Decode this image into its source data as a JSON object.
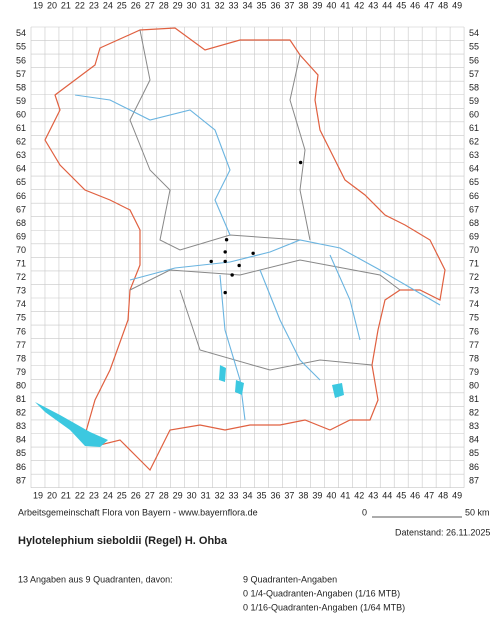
{
  "map": {
    "columns": [
      19,
      20,
      21,
      22,
      23,
      24,
      25,
      26,
      27,
      28,
      29,
      30,
      31,
      32,
      33,
      34,
      35,
      36,
      37,
      38,
      39,
      40,
      41,
      42,
      43,
      44,
      45,
      46,
      47,
      48,
      49
    ],
    "rows": [
      54,
      55,
      56,
      57,
      58,
      59,
      60,
      61,
      62,
      63,
      64,
      65,
      66,
      67,
      68,
      69,
      70,
      71,
      72,
      73,
      74,
      75,
      76,
      77,
      78,
      79,
      80,
      81,
      82,
      83,
      84,
      85,
      86,
      87
    ],
    "points": [
      {
        "x": 38.3,
        "y": 64.0
      },
      {
        "x": 33.0,
        "y": 69.7
      },
      {
        "x": 32.9,
        "y": 70.6
      },
      {
        "x": 34.9,
        "y": 70.7
      },
      {
        "x": 31.9,
        "y": 71.3
      },
      {
        "x": 32.9,
        "y": 71.3
      },
      {
        "x": 33.9,
        "y": 71.6
      },
      {
        "x": 33.4,
        "y": 72.3
      },
      {
        "x": 32.9,
        "y": 73.6
      }
    ]
  },
  "footer": {
    "credit": "Arbeitsgemeinschaft Flora von Bayern - www.bayernflora.de",
    "scale_start": "0",
    "scale_end": "50 km",
    "date": "Datenstand: 26.11.2025",
    "title": "Hylotelephium sieboldii (Regel) H. Ohba",
    "summary": "13 Angaben aus 9 Quadranten, davon:",
    "counts": [
      "9 Quadranten-Angaben",
      "0 1/4-Quadranten-Angaben (1/16 MTB)",
      "0 1/16-Quadranten-Angaben (1/64 MTB)"
    ]
  }
}
